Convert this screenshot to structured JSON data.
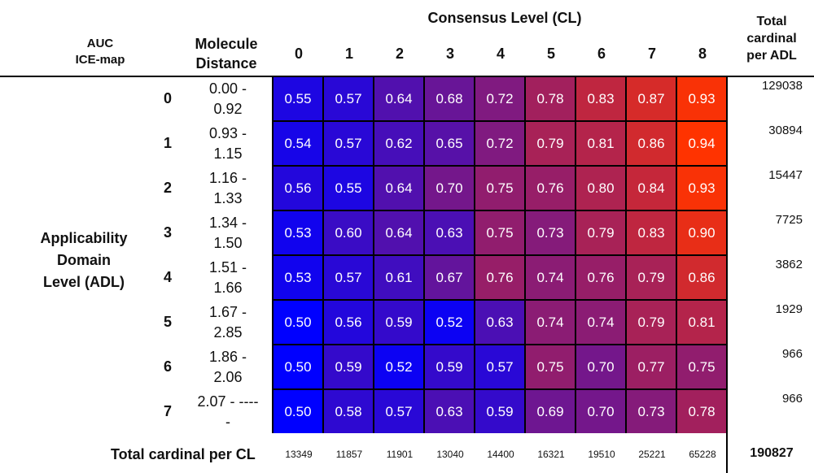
{
  "chart_data": {
    "type": "heatmap",
    "title": "Consensus Level (CL)",
    "corner_label": [
      "AUC",
      "ICE-map"
    ],
    "distance_header": [
      "Molecule",
      "Distance"
    ],
    "row_axis_label": [
      "Applicability",
      "Domain",
      "Level (ADL)"
    ],
    "row_total_header": [
      "Total",
      "cardinal",
      "per ADL"
    ],
    "column_total_label": "Total cardinal per CL",
    "columns": [
      "0",
      "1",
      "2",
      "3",
      "4",
      "5",
      "6",
      "7",
      "8"
    ],
    "rows": [
      "0",
      "1",
      "2",
      "3",
      "4",
      "5",
      "6",
      "7"
    ],
    "distances": [
      [
        "0.00 -",
        "0.92"
      ],
      [
        "0.93 -",
        "1.15"
      ],
      [
        "1.16 -",
        "1.33"
      ],
      [
        "1.34 -",
        "1.50"
      ],
      [
        "1.51 -",
        "1.66"
      ],
      [
        "1.67 -",
        "2.85"
      ],
      [
        "1.86 -",
        "2.06"
      ],
      [
        "2.07 - ----",
        "-"
      ]
    ],
    "values": [
      [
        0.55,
        0.57,
        0.64,
        0.68,
        0.72,
        0.78,
        0.83,
        0.87,
        0.93
      ],
      [
        0.54,
        0.57,
        0.62,
        0.65,
        0.72,
        0.79,
        0.81,
        0.86,
        0.94
      ],
      [
        0.56,
        0.55,
        0.64,
        0.7,
        0.75,
        0.76,
        0.8,
        0.84,
        0.93
      ],
      [
        0.53,
        0.6,
        0.64,
        0.63,
        0.75,
        0.73,
        0.79,
        0.83,
        0.9
      ],
      [
        0.53,
        0.57,
        0.61,
        0.67,
        0.76,
        0.74,
        0.76,
        0.79,
        0.86
      ],
      [
        0.5,
        0.56,
        0.59,
        0.52,
        0.63,
        0.74,
        0.74,
        0.79,
        0.81
      ],
      [
        0.5,
        0.59,
        0.52,
        0.59,
        0.57,
        0.75,
        0.7,
        0.77,
        0.75
      ],
      [
        0.5,
        0.58,
        0.57,
        0.63,
        0.59,
        0.69,
        0.7,
        0.73,
        0.78
      ]
    ],
    "row_totals": [
      "129038",
      "30894",
      "15447",
      "7725",
      "3862",
      "1929",
      "966",
      "966"
    ],
    "column_totals": [
      "13349",
      "11857",
      "11901",
      "13040",
      "14400",
      "16321",
      "19510",
      "25221",
      "65228"
    ],
    "grand_total": "190827",
    "color_scale": {
      "low": "#0000ff",
      "high": "#ff3300",
      "min": 0.5,
      "max": 0.94
    }
  }
}
